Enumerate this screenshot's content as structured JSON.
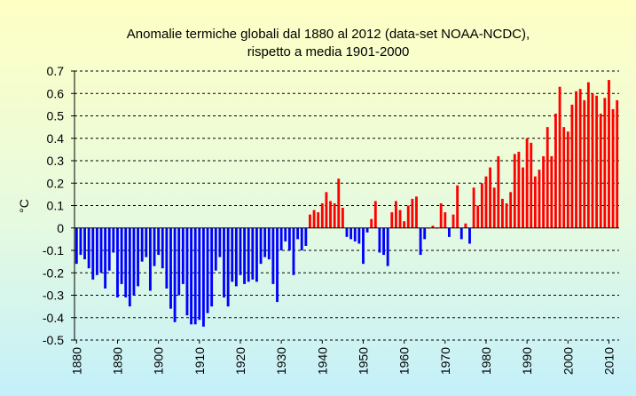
{
  "chart_data": {
    "type": "bar",
    "title": [
      "Anomalie termiche globali dal 1880 al 2012 (data-set NOAA-NCDC),",
      "rispetto a media 1901-2000"
    ],
    "ylabel": "°C",
    "xlabel": "",
    "ylim": [
      -0.5,
      0.7
    ],
    "yticks": [
      0.7,
      0.6,
      0.5,
      0.4,
      0.3,
      0.2,
      0.1,
      0,
      -0.1,
      -0.2,
      -0.3,
      -0.4,
      -0.5
    ],
    "yticklabels": [
      "0.7",
      "0.6",
      "0.5",
      "0.4",
      "0.3",
      "0.2",
      "0.1",
      "0",
      "-0.1",
      "-0.2",
      "-0.3",
      "-0.4",
      "-0.5"
    ],
    "xticks": [
      1880,
      1890,
      1900,
      1910,
      1920,
      1930,
      1940,
      1950,
      1960,
      1970,
      1980,
      1990,
      2000,
      2010
    ],
    "grid": true,
    "colors": {
      "positive": "#ff0000",
      "negative": "#0000ff",
      "grid": "#000000"
    },
    "series": [
      {
        "x": [
          1880,
          1881,
          1882,
          1883,
          1884,
          1885,
          1886,
          1887,
          1888,
          1889,
          1890,
          1891,
          1892,
          1893,
          1894,
          1895,
          1896,
          1897,
          1898,
          1899,
          1900,
          1901,
          1902,
          1903,
          1904,
          1905,
          1906,
          1907,
          1908,
          1909,
          1910,
          1911,
          1912,
          1913,
          1914,
          1915,
          1916,
          1917,
          1918,
          1919,
          1920,
          1921,
          1922,
          1923,
          1924,
          1925,
          1926,
          1927,
          1928,
          1929,
          1930,
          1931,
          1932,
          1933,
          1934,
          1935,
          1936,
          1937,
          1938,
          1939,
          1940,
          1941,
          1942,
          1943,
          1944,
          1945,
          1946,
          1947,
          1948,
          1949,
          1950,
          1951,
          1952,
          1953,
          1954,
          1955,
          1956,
          1957,
          1958,
          1959,
          1960,
          1961,
          1962,
          1963,
          1964,
          1965,
          1966,
          1967,
          1968,
          1969,
          1970,
          1971,
          1972,
          1973,
          1974,
          1975,
          1976,
          1977,
          1978,
          1979,
          1980,
          1981,
          1982,
          1983,
          1984,
          1985,
          1986,
          1987,
          1988,
          1989,
          1990,
          1991,
          1992,
          1993,
          1994,
          1995,
          1996,
          1997,
          1998,
          1999,
          2000,
          2001,
          2002,
          2003,
          2004,
          2005,
          2006,
          2007,
          2008,
          2009,
          2010,
          2011,
          2012
        ],
        "values": [
          -0.16,
          -0.12,
          -0.14,
          -0.18,
          -0.23,
          -0.21,
          -0.2,
          -0.27,
          -0.19,
          -0.11,
          -0.31,
          -0.25,
          -0.31,
          -0.35,
          -0.3,
          -0.26,
          -0.15,
          -0.13,
          -0.28,
          -0.17,
          -0.12,
          -0.18,
          -0.27,
          -0.36,
          -0.42,
          -0.3,
          -0.25,
          -0.39,
          -0.43,
          -0.43,
          -0.41,
          -0.44,
          -0.38,
          -0.35,
          -0.19,
          -0.13,
          -0.31,
          -0.35,
          -0.24,
          -0.26,
          -0.21,
          -0.25,
          -0.24,
          -0.23,
          -0.24,
          -0.16,
          -0.13,
          -0.14,
          -0.25,
          -0.33,
          -0.1,
          -0.06,
          -0.1,
          -0.21,
          -0.05,
          -0.1,
          -0.08,
          0.06,
          0.08,
          0.07,
          0.11,
          0.16,
          0.12,
          0.11,
          0.22,
          0.09,
          -0.04,
          -0.05,
          -0.06,
          -0.07,
          -0.16,
          -0.02,
          0.04,
          0.12,
          -0.11,
          -0.12,
          -0.17,
          0.07,
          0.12,
          0.08,
          0.03,
          0.1,
          0.13,
          0.14,
          -0.12,
          -0.05,
          0.0,
          0.01,
          0.0,
          0.11,
          0.07,
          -0.04,
          0.06,
          0.19,
          -0.05,
          0.02,
          -0.07,
          0.18,
          0.1,
          0.2,
          0.23,
          0.27,
          0.18,
          0.32,
          0.13,
          0.11,
          0.16,
          0.33,
          0.34,
          0.27,
          0.4,
          0.38,
          0.23,
          0.26,
          0.32,
          0.45,
          0.32,
          0.51,
          0.63,
          0.45,
          0.43,
          0.55,
          0.61,
          0.62,
          0.57,
          0.65,
          0.6,
          0.59,
          0.51,
          0.58,
          0.66,
          0.53,
          0.57
        ]
      }
    ]
  }
}
